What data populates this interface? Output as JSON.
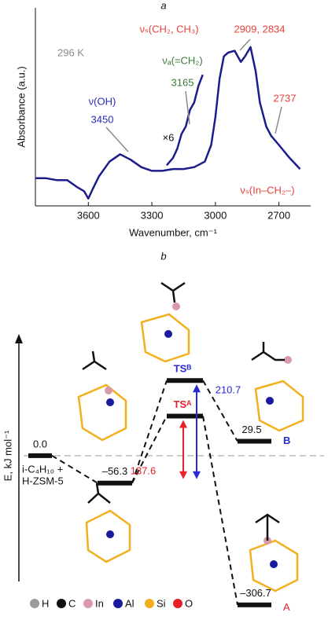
{
  "chart_data": [
    {
      "type": "line",
      "panel": "a",
      "xlabel": "Wavenumber, cm⁻¹",
      "ylabel": "Absorbance (a.u.)",
      "xlim": [
        3850,
        2550
      ],
      "xticks": [
        3600,
        3300,
        3000,
        2700
      ],
      "ylim": [
        0,
        1
      ],
      "series": [
        {
          "color": "#1c1c8c",
          "x": [
            3850,
            3800,
            3750,
            3700,
            3650,
            3620,
            3600,
            3580,
            3550,
            3500,
            3450,
            3400,
            3350,
            3300,
            3250,
            3200,
            3150,
            3100,
            3050,
            3020,
            3000,
            2980,
            2960,
            2940,
            2909,
            2880,
            2860,
            2834,
            2810,
            2790,
            2760,
            2737,
            2700,
            2650,
            2600
          ],
          "values": [
            0.12,
            0.12,
            0.11,
            0.11,
            0.07,
            0.05,
            0.01,
            0.06,
            0.13,
            0.21,
            0.25,
            0.22,
            0.18,
            0.16,
            0.16,
            0.17,
            0.17,
            0.18,
            0.21,
            0.3,
            0.45,
            0.66,
            0.78,
            0.8,
            0.81,
            0.75,
            0.78,
            0.83,
            0.7,
            0.53,
            0.4,
            0.35,
            0.3,
            0.23,
            0.17
          ]
        },
        {
          "color": "#1c1c8c",
          "x": [
            3230,
            3200,
            3180,
            3160,
            3140,
            3120,
            3100,
            3080,
            3060
          ],
          "values": [
            0.19,
            0.23,
            0.28,
            0.36,
            0.4,
            0.49,
            0.53,
            0.62,
            0.68
          ]
        }
      ],
      "annotations": [
        {
          "text": "296 K",
          "color": "#8a8a8a"
        },
        {
          "text": "νₛ(CH₂, CH₃)",
          "color": "#e8403a"
        },
        {
          "text": "2909, 2834",
          "color": "#e8403a"
        },
        {
          "text": "νₐ(=CH₂)",
          "color": "#3a7a3a"
        },
        {
          "text": "3165",
          "color": "#3a7a3a"
        },
        {
          "text": "ν(OH)",
          "color": "#2a2ab8"
        },
        {
          "text": "3450",
          "color": "#2a2ab8"
        },
        {
          "text": "×6",
          "color": "#111111"
        },
        {
          "text": "2737",
          "color": "#e8403a"
        },
        {
          "text": "νₛ(In–CH₂–)",
          "color": "#e8403a"
        }
      ]
    },
    {
      "type": "energy",
      "panel": "b",
      "ylabel": "E, kJ mol⁻¹",
      "ylim": [
        -320,
        250
      ],
      "levels": [
        {
          "label_lines": [
            "i-C₄H₁₀ +",
            "H-ZSM-5"
          ],
          "value": 0,
          "value_label": "0.0"
        },
        {
          "value": -56.3,
          "value_label": "–56.3"
        },
        {
          "label": "TSᴬ",
          "barrier": 137.6,
          "color": "#e8202a"
        },
        {
          "label": "TSᴮ",
          "barrier": 210.7,
          "color": "#2a2ad0"
        },
        {
          "label": "B",
          "value": 29.5,
          "color": "#2a2ad0"
        },
        {
          "label": "A",
          "value": -306.7,
          "value_label": "–306.7",
          "color": "#e8202a"
        }
      ],
      "legend": [
        {
          "label": "H",
          "color": "#9a9a9a"
        },
        {
          "label": "C",
          "color": "#111111"
        },
        {
          "label": "In",
          "color": "#d89aa8"
        },
        {
          "label": "Al",
          "color": "#1a1aa0"
        },
        {
          "label": "Si",
          "color": "#f2b01e"
        },
        {
          "label": "O",
          "color": "#e82020"
        }
      ]
    }
  ]
}
